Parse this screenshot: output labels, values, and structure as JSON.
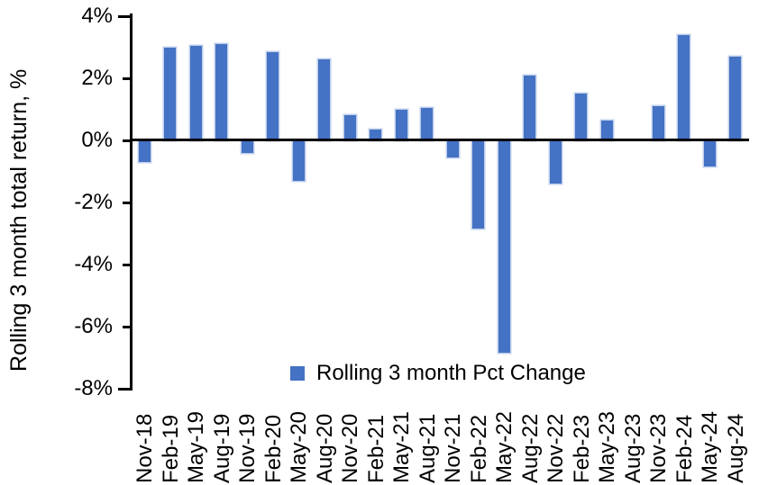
{
  "chart_data": {
    "type": "bar",
    "title": "",
    "ylabel": "Rolling 3 month total return, %",
    "xlabel": "",
    "categories": [
      "Nov-18",
      "Feb-19",
      "May-19",
      "Aug-19",
      "Nov-19",
      "Feb-20",
      "May-20",
      "Aug-20",
      "Nov-20",
      "Feb-21",
      "May-21",
      "Aug-21",
      "Nov-21",
      "Feb-22",
      "May-22",
      "Aug-22",
      "Nov-22",
      "Feb-23",
      "May-23",
      "Aug-23",
      "Nov-23",
      "Feb-24",
      "May-24",
      "Aug-24"
    ],
    "series": [
      {
        "name": "Rolling 3 month Pct Change",
        "color": "#4472C4",
        "values": [
          -0.7,
          3.0,
          3.05,
          3.1,
          -0.4,
          2.85,
          -1.3,
          2.6,
          0.8,
          0.35,
          1.0,
          1.05,
          -0.55,
          -2.85,
          -6.85,
          2.1,
          -1.4,
          1.5,
          0.65,
          0.0,
          1.1,
          3.4,
          -0.85,
          2.7
        ]
      }
    ],
    "ylim": [
      -8,
      4
    ],
    "ytick_step": 2,
    "yticks": [
      {
        "value": 4,
        "label": "4%"
      },
      {
        "value": 2,
        "label": "2%"
      },
      {
        "value": 0,
        "label": "0%"
      },
      {
        "value": -2,
        "label": "-2%"
      },
      {
        "value": -4,
        "label": "-4%"
      },
      {
        "value": -6,
        "label": "-6%"
      },
      {
        "value": -8,
        "label": "-8%"
      }
    ],
    "grid": false,
    "axis_color": "#000000",
    "bar_halo_color": "#B4C7E7",
    "legend": {
      "label": "Rolling 3 month Pct Change",
      "marker_color": "#4472C4",
      "position": "bottom-center"
    }
  }
}
